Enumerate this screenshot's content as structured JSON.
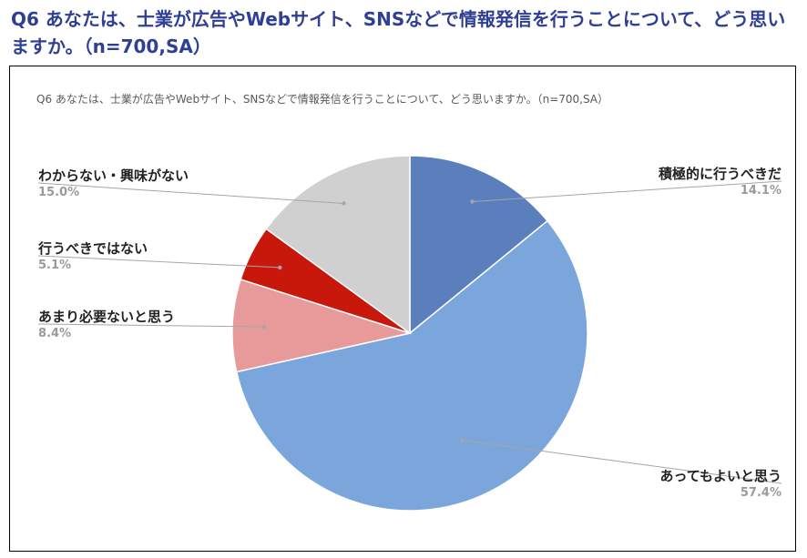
{
  "heading": {
    "line1": "Q6 あなたは、士業が広告やWebサイト、SNSなどで情報発信を行うことについて、どう思い",
    "line2": "ますか。（n=700,SA）"
  },
  "chart_data": {
    "type": "pie",
    "title": "Q6 あなたは、士業が広告やWebサイト、SNSなどで情報発信を行うことについて、どう思いますか。（n=700,SA）",
    "slices": [
      {
        "label": "積極的に行うべきだ",
        "value": 14.1,
        "display": "14.1%",
        "color": "#5b7fbd"
      },
      {
        "label": "あってもよいと思う",
        "value": 57.4,
        "display": "57.4%",
        "color": "#7aa6dc"
      },
      {
        "label": "あまり必要ないと思う",
        "value": 8.4,
        "display": "8.4%",
        "color": "#e89a9a"
      },
      {
        "label": "行うべきではない",
        "value": 5.1,
        "display": "5.1%",
        "color": "#c8180c"
      },
      {
        "label": "わからない・興味がない",
        "value": 15.0,
        "display": "15.0%",
        "color": "#d0d0d0"
      }
    ],
    "legend": "none",
    "labels_position": "outside with leader lines"
  }
}
